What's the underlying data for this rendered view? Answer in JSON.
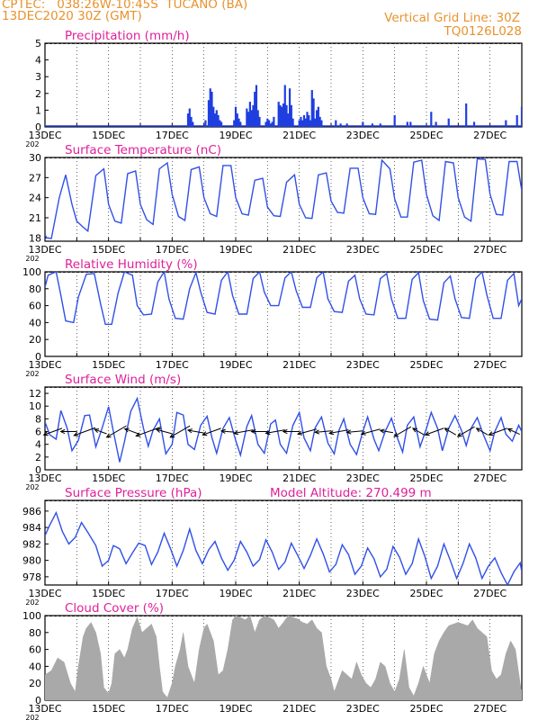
{
  "header": {
    "line1": "CPTEC:   038:26W-10:45S  TUCANO (BA)",
    "line2": "13DEC2020 30Z (GMT)",
    "right1": "Vertical Grid Line: 30Z",
    "right2": "TQ0126L028"
  },
  "colors": {
    "header": "#e8922e",
    "title": "#e0209a",
    "precip_bars": "#1f3ee0",
    "series_line": "#3050e8",
    "wind_arrows": "#000000",
    "pressure_line": "#3050e8",
    "cloud_fill": "#a9a9a9"
  },
  "x_axis": {
    "tick_labels": [
      "13DEC",
      "15DEC",
      "17DEC",
      "19DEC",
      "21DEC",
      "23DEC",
      "25DEC",
      "27DEC"
    ],
    "start_day": 13,
    "end_day": 28,
    "under_label": "202"
  },
  "chart_data": [
    {
      "id": "precip",
      "type": "bar",
      "title": "Precipitation  (mm/h)",
      "ylim": [
        0,
        5
      ],
      "yticks": [
        "0",
        "1",
        "2",
        "3",
        "4",
        "5"
      ],
      "xlabel": "",
      "ylabel": "",
      "x": [
        17.5,
        17.55,
        17.6,
        17.65,
        18.05,
        18.15,
        18.2,
        18.25,
        18.3,
        18.35,
        18.4,
        18.45,
        18.5,
        18.55,
        18.95,
        19.0,
        19.05,
        19.1,
        19.15,
        19.35,
        19.4,
        19.45,
        19.5,
        19.55,
        19.6,
        19.65,
        19.7,
        19.75,
        19.95,
        20.0,
        20.05,
        20.1,
        20.15,
        20.2,
        20.35,
        20.4,
        20.45,
        20.5,
        20.55,
        20.6,
        20.65,
        20.7,
        20.75,
        20.8,
        21.0,
        21.05,
        21.1,
        21.15,
        21.2,
        21.25,
        21.3,
        21.35,
        21.4,
        21.45,
        21.5,
        21.55,
        21.6,
        21.65,
        21.7,
        22.15,
        22.3,
        22.5,
        23.0,
        23.3,
        23.55,
        24.0,
        24.4,
        24.5,
        25.15,
        25.3,
        25.7,
        26.25,
        26.5,
        27.5,
        27.85,
        28.0
      ],
      "y": [
        0.8,
        1.1,
        0.6,
        0.3,
        0.4,
        1.6,
        2.3,
        2.1,
        1.2,
        0.8,
        1.0,
        0.7,
        0.4,
        0.3,
        0.4,
        1.2,
        0.8,
        0.5,
        0.3,
        1.1,
        0.9,
        1.5,
        1.0,
        1.3,
        2.1,
        2.5,
        1.0,
        0.6,
        0.3,
        0.5,
        0.4,
        0.2,
        0.3,
        0.6,
        1.5,
        1.3,
        1.2,
        1.4,
        2.5,
        1.3,
        0.8,
        2.3,
        1.3,
        0.5,
        0.4,
        0.6,
        0.4,
        0.7,
        0.5,
        0.9,
        0.7,
        0.4,
        2.2,
        1.7,
        0.5,
        1.0,
        1.2,
        0.6,
        0.4,
        0.4,
        0.2,
        0.2,
        0.3,
        0.2,
        0.2,
        0.7,
        0.3,
        0.3,
        0.9,
        0.3,
        0.5,
        1.4,
        0.3,
        0.4,
        0.7,
        1.2
      ]
    },
    {
      "id": "temp",
      "type": "line",
      "title": "Surface Temperature (nC)",
      "ylim": [
        17.5,
        30
      ],
      "yticks": [
        "18",
        "21",
        "24",
        "27",
        "30"
      ],
      "ytick_values": [
        18,
        21,
        24,
        27,
        30
      ],
      "xlabel": "",
      "ylabel": "",
      "x": [
        13.0,
        13.05,
        13.2,
        13.45,
        13.65,
        13.85,
        14.0,
        14.2,
        14.35,
        14.6,
        14.85,
        15.0,
        15.2,
        15.4,
        15.6,
        15.85,
        16.0,
        16.2,
        16.4,
        16.6,
        16.85,
        17.0,
        17.2,
        17.4,
        17.6,
        17.85,
        18.0,
        18.2,
        18.4,
        18.6,
        18.85,
        19.0,
        19.2,
        19.4,
        19.6,
        19.85,
        20.0,
        20.2,
        20.4,
        20.6,
        20.85,
        21.0,
        21.2,
        21.4,
        21.6,
        21.85,
        22.0,
        22.2,
        22.4,
        22.6,
        22.85,
        23.0,
        23.2,
        23.4,
        23.6,
        23.85,
        24.0,
        24.2,
        24.4,
        24.6,
        24.85,
        25.0,
        25.2,
        25.4,
        25.6,
        25.85,
        26.0,
        26.2,
        26.4,
        26.6,
        26.85,
        27.0,
        27.2,
        27.4,
        27.6,
        27.85,
        28.0
      ],
      "y": [
        18.5,
        18.0,
        17.9,
        24.0,
        27.4,
        23.0,
        20.5,
        19.6,
        19.0,
        27.3,
        28.3,
        23.0,
        20.5,
        20.2,
        27.6,
        28.0,
        23.0,
        20.7,
        20.0,
        28.3,
        29.2,
        24.5,
        21.2,
        20.6,
        28.2,
        28.6,
        24.0,
        21.6,
        21.2,
        28.8,
        28.8,
        24.0,
        21.6,
        21.4,
        26.6,
        26.9,
        22.6,
        21.3,
        21.2,
        26.3,
        27.4,
        23.0,
        21.0,
        20.9,
        27.4,
        27.7,
        23.5,
        21.8,
        21.7,
        28.4,
        28.4,
        24.0,
        21.6,
        21.5,
        29.6,
        28.3,
        23.8,
        21.1,
        21.1,
        29.3,
        29.6,
        24.5,
        21.3,
        20.6,
        29.4,
        29.2,
        24.0,
        21.1,
        20.5,
        29.8,
        29.7,
        24.5,
        21.5,
        21.4,
        29.4,
        29.4,
        25.0
      ]
    },
    {
      "id": "rh",
      "type": "line",
      "title": "Relative Humidity (%)",
      "ylim": [
        0,
        100
      ],
      "yticks": [
        "0",
        "20",
        "40",
        "60",
        "80",
        "100"
      ],
      "ytick_values": [
        0,
        20,
        40,
        60,
        80,
        100
      ],
      "xlabel": "",
      "ylabel": "",
      "x": [
        13.0,
        13.1,
        13.35,
        13.5,
        13.65,
        13.9,
        14.05,
        14.3,
        14.55,
        14.75,
        14.9,
        15.1,
        15.3,
        15.5,
        15.75,
        15.9,
        16.1,
        16.35,
        16.55,
        16.75,
        16.9,
        17.1,
        17.35,
        17.55,
        17.75,
        17.9,
        18.1,
        18.35,
        18.55,
        18.75,
        18.9,
        19.1,
        19.35,
        19.55,
        19.75,
        19.9,
        20.1,
        20.35,
        20.55,
        20.75,
        20.9,
        21.1,
        21.35,
        21.55,
        21.75,
        21.9,
        22.1,
        22.35,
        22.55,
        22.75,
        22.9,
        23.1,
        23.35,
        23.55,
        23.75,
        23.9,
        24.1,
        24.35,
        24.55,
        24.75,
        24.9,
        25.1,
        25.35,
        25.55,
        25.75,
        25.9,
        26.1,
        26.35,
        26.55,
        26.75,
        26.9,
        27.1,
        27.35,
        27.55,
        27.75,
        27.9,
        28.0
      ],
      "y": [
        82,
        96,
        100,
        72,
        42,
        40,
        70,
        97,
        98,
        62,
        38,
        38,
        75,
        100,
        96,
        60,
        49,
        50,
        88,
        100,
        68,
        45,
        44,
        80,
        99,
        76,
        52,
        50,
        90,
        100,
        72,
        50,
        50,
        92,
        100,
        76,
        60,
        60,
        93,
        100,
        78,
        58,
        58,
        93,
        100,
        68,
        53,
        52,
        89,
        96,
        68,
        50,
        49,
        92,
        98,
        68,
        45,
        45,
        91,
        99,
        66,
        44,
        43,
        87,
        95,
        68,
        46,
        45,
        92,
        100,
        73,
        45,
        45,
        90,
        98,
        60,
        68
      ]
    },
    {
      "id": "wind",
      "type": "line",
      "title": "Surface Wind  (m/s)",
      "ylim": [
        0,
        13
      ],
      "yticks": [
        "0",
        "2",
        "4",
        "6",
        "8",
        "10",
        "12"
      ],
      "ytick_values": [
        0,
        2,
        4,
        6,
        8,
        10,
        12
      ],
      "xlabel": "",
      "ylabel": "",
      "x": [
        13.0,
        13.15,
        13.35,
        13.5,
        13.7,
        13.85,
        14.05,
        14.25,
        14.4,
        14.6,
        14.8,
        15.0,
        15.15,
        15.35,
        15.5,
        15.7,
        15.9,
        16.1,
        16.25,
        16.4,
        16.6,
        16.8,
        17.0,
        17.15,
        17.35,
        17.5,
        17.7,
        17.9,
        18.1,
        18.25,
        18.4,
        18.6,
        18.8,
        19.0,
        19.15,
        19.35,
        19.5,
        19.7,
        19.9,
        20.1,
        20.25,
        20.4,
        20.6,
        20.8,
        21.0,
        21.15,
        21.35,
        21.5,
        21.7,
        21.9,
        22.1,
        22.25,
        22.4,
        22.6,
        22.8,
        23.0,
        23.15,
        23.35,
        23.5,
        23.7,
        23.9,
        24.1,
        24.25,
        24.4,
        24.6,
        24.8,
        25.0,
        25.15,
        25.35,
        25.5,
        25.7,
        25.9,
        26.1,
        26.25,
        26.4,
        26.6,
        26.8,
        27.0,
        27.15,
        27.35,
        27.5,
        27.7,
        27.9,
        28.0
      ],
      "y": [
        7.5,
        5.5,
        4.8,
        9.3,
        6.5,
        3.0,
        4.6,
        8.5,
        8.6,
        3.6,
        6.6,
        9.9,
        6.0,
        1.2,
        4.4,
        9.2,
        11.2,
        6.5,
        3.7,
        6.2,
        8.0,
        2.5,
        4.0,
        9.0,
        8.6,
        4.0,
        3.2,
        7.0,
        8.4,
        5.1,
        2.6,
        6.5,
        8.2,
        4.6,
        2.3,
        6.8,
        8.5,
        4.0,
        2.6,
        7.2,
        7.8,
        4.0,
        2.6,
        7.0,
        9.0,
        5.0,
        3.0,
        6.6,
        8.3,
        4.2,
        2.5,
        6.2,
        8.0,
        4.0,
        2.4,
        6.0,
        8.3,
        4.8,
        3.0,
        6.0,
        8.1,
        4.8,
        2.8,
        7.0,
        8.3,
        3.6,
        6.5,
        9.0,
        6.5,
        3.0,
        6.5,
        8.5,
        6.2,
        3.8,
        6.5,
        8.2,
        5.4,
        3.0,
        6.0,
        8.2,
        5.6,
        4.5,
        7.0,
        6.0
      ],
      "arrows_x": [
        13.25,
        13.75,
        14.25,
        14.75,
        15.25,
        15.75,
        16.25,
        16.75,
        17.25,
        17.75,
        18.25,
        18.75,
        19.25,
        19.75,
        20.25,
        20.75,
        21.25,
        21.75,
        22.25,
        22.75,
        23.25,
        23.75,
        24.25,
        24.75,
        25.25,
        25.75,
        26.25,
        26.75,
        27.25,
        27.75
      ],
      "arrows_dir": [
        200,
        180,
        200,
        160,
        210,
        160,
        200,
        165,
        210,
        170,
        200,
        175,
        190,
        180,
        190,
        180,
        195,
        185,
        190,
        185,
        195,
        170,
        210,
        150,
        200,
        150,
        210,
        150,
        200,
        155
      ],
      "arrows_speed": [
        6,
        5,
        7,
        4,
        7,
        5,
        8,
        5,
        7,
        5,
        6,
        4,
        6,
        5,
        6,
        5,
        6,
        5,
        6,
        5,
        6,
        4,
        6,
        4,
        6,
        4,
        6,
        4,
        6,
        4
      ]
    },
    {
      "id": "press",
      "type": "line",
      "title": "Surface Pressure (hPa)",
      "subtitle": "Model Altitude: 270.499  m",
      "ylim": [
        977,
        987.3
      ],
      "yticks": [
        "978",
        "980",
        "982",
        "984",
        "986"
      ],
      "ytick_values": [
        978,
        980,
        982,
        984,
        986
      ],
      "xlabel": "",
      "ylabel": "",
      "x": [
        13.0,
        13.15,
        13.35,
        13.55,
        13.75,
        13.95,
        14.15,
        14.35,
        14.6,
        14.8,
        15.0,
        15.15,
        15.35,
        15.55,
        15.75,
        15.95,
        16.15,
        16.35,
        16.55,
        16.75,
        16.95,
        17.15,
        17.35,
        17.55,
        17.75,
        17.95,
        18.15,
        18.35,
        18.55,
        18.75,
        18.95,
        19.15,
        19.35,
        19.55,
        19.75,
        19.95,
        20.15,
        20.35,
        20.55,
        20.75,
        20.95,
        21.15,
        21.35,
        21.55,
        21.75,
        21.95,
        22.15,
        22.35,
        22.55,
        22.75,
        22.95,
        23.15,
        23.35,
        23.55,
        23.75,
        23.95,
        24.15,
        24.35,
        24.55,
        24.75,
        24.95,
        25.15,
        25.35,
        25.55,
        25.75,
        25.95,
        26.15,
        26.35,
        26.55,
        26.75,
        26.95,
        27.15,
        27.35,
        27.55,
        27.75,
        27.95,
        28.0
      ],
      "y": [
        983.0,
        984.3,
        985.8,
        983.5,
        982.0,
        982.8,
        984.6,
        983.4,
        981.8,
        979.3,
        980.0,
        981.8,
        981.4,
        979.6,
        980.9,
        982.1,
        981.8,
        979.5,
        981.0,
        983.3,
        981.4,
        979.3,
        981.2,
        983.8,
        981.2,
        979.6,
        981.3,
        982.3,
        980.3,
        978.8,
        980.0,
        982.3,
        981.0,
        979.3,
        980.1,
        982.5,
        981.0,
        978.9,
        979.8,
        982.1,
        980.6,
        979.0,
        980.6,
        982.6,
        980.8,
        978.6,
        979.5,
        981.9,
        980.7,
        978.3,
        979.3,
        981.5,
        980.2,
        978.0,
        978.9,
        981.7,
        980.4,
        978.3,
        979.6,
        982.6,
        980.5,
        977.8,
        979.3,
        982.0,
        980.0,
        977.8,
        979.6,
        982.0,
        980.3,
        977.8,
        979.3,
        980.3,
        978.5,
        977.0,
        978.6,
        979.7,
        978.6
      ]
    },
    {
      "id": "cloud",
      "type": "area",
      "title": "Cloud Cover (%)",
      "ylim": [
        0,
        100
      ],
      "yticks": [
        "0",
        "20",
        "40",
        "60",
        "80",
        "100"
      ],
      "ytick_values": [
        0,
        20,
        40,
        60,
        80,
        100
      ],
      "xlabel": "",
      "ylabel": "",
      "x": [
        13.0,
        13.2,
        13.4,
        13.6,
        13.8,
        13.95,
        14.05,
        14.2,
        14.3,
        14.45,
        14.6,
        14.75,
        14.85,
        15.0,
        15.1,
        15.2,
        15.35,
        15.5,
        15.6,
        15.75,
        15.9,
        16.05,
        16.2,
        16.35,
        16.5,
        16.6,
        16.7,
        16.85,
        17.0,
        17.1,
        17.25,
        17.35,
        17.5,
        17.7,
        17.85,
        18.0,
        18.1,
        18.3,
        18.45,
        18.6,
        18.75,
        18.9,
        19.0,
        19.15,
        19.3,
        19.45,
        19.6,
        19.75,
        19.9,
        20.05,
        20.2,
        20.35,
        20.5,
        20.65,
        20.8,
        20.95,
        21.1,
        21.25,
        21.4,
        21.55,
        21.7,
        21.85,
        22.0,
        22.1,
        22.2,
        22.35,
        22.5,
        22.65,
        22.8,
        22.95,
        23.1,
        23.25,
        23.4,
        23.55,
        23.7,
        23.85,
        24.0,
        24.15,
        24.3,
        24.45,
        24.6,
        24.75,
        24.9,
        25.0,
        25.1,
        25.25,
        25.4,
        25.55,
        25.7,
        25.85,
        26.0,
        26.15,
        26.3,
        26.45,
        26.6,
        26.75,
        26.9,
        27.05,
        27.2,
        27.35,
        27.5,
        27.65,
        27.8,
        27.95,
        28.0
      ],
      "y": [
        30,
        35,
        50,
        45,
        20,
        10,
        40,
        75,
        85,
        92,
        80,
        55,
        15,
        8,
        20,
        55,
        60,
        50,
        60,
        85,
        98,
        80,
        85,
        90,
        75,
        40,
        10,
        3,
        20,
        40,
        60,
        80,
        40,
        20,
        60,
        85,
        90,
        70,
        30,
        35,
        60,
        95,
        100,
        98,
        95,
        100,
        80,
        95,
        100,
        98,
        95,
        85,
        92,
        100,
        98,
        96,
        92,
        90,
        95,
        85,
        80,
        40,
        25,
        10,
        20,
        35,
        30,
        25,
        45,
        30,
        20,
        15,
        25,
        45,
        40,
        20,
        10,
        25,
        60,
        15,
        5,
        20,
        40,
        30,
        20,
        55,
        70,
        80,
        88,
        90,
        92,
        90,
        88,
        95,
        85,
        80,
        75,
        35,
        25,
        30,
        55,
        70,
        60,
        20,
        10
      ]
    }
  ]
}
